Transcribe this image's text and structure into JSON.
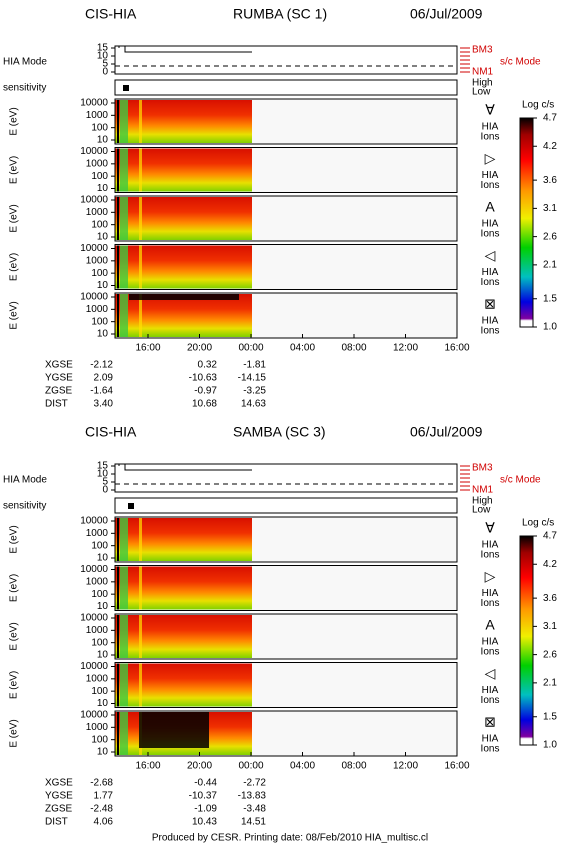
{
  "plots": [
    {
      "instrument": "CIS-HIA",
      "spacecraft": "RUMBA (SC 1)",
      "date": "06/Jul/2009",
      "orbit": [
        {
          "name": "XGSE",
          "values": [
            "-2.12",
            "0.32",
            "-1.81"
          ]
        },
        {
          "name": "YGSE",
          "values": [
            "2.09",
            "-10.63",
            "-14.15"
          ]
        },
        {
          "name": "ZGSE",
          "values": [
            "-1.64",
            "-0.97",
            "-3.25"
          ]
        },
        {
          "name": "DIST",
          "values": [
            "3.40",
            "10.68",
            "14.63"
          ]
        }
      ]
    },
    {
      "instrument": "CIS-HIA",
      "spacecraft": "SAMBA (SC 3)",
      "date": "06/Jul/2009",
      "orbit": [
        {
          "name": "XGSE",
          "values": [
            "-2.68",
            "-0.44",
            "-2.72"
          ]
        },
        {
          "name": "YGSE",
          "values": [
            "1.77",
            "-10.37",
            "-13.83"
          ]
        },
        {
          "name": "ZGSE",
          "values": [
            "-2.48",
            "-1.09",
            "-3.48"
          ]
        },
        {
          "name": "DIST",
          "values": [
            "4.06",
            "10.43",
            "14.51"
          ]
        }
      ]
    }
  ],
  "mode_label": "HIA Mode",
  "mode_ticks": [
    15,
    10,
    5,
    0
  ],
  "mode_right": [
    "BM3",
    "NM1"
  ],
  "sc_mode": "s/c Mode",
  "sensitivity_label": "sensitivity",
  "sensitivity_levels": [
    "High",
    "Low"
  ],
  "energy_label": "E (eV)",
  "energy_ticks": [
    10000,
    1000,
    100,
    10
  ],
  "species_symbols": [
    "∀",
    "▷",
    "A",
    "◁",
    "⊠"
  ],
  "species_label": [
    "HIA",
    "Ions"
  ],
  "colorbar_title": "Log c/s",
  "colorbar_ticks": [
    4.7,
    4.2,
    3.6,
    3.1,
    2.6,
    2.1,
    1.5,
    {
      "value": 1,
      "label": "1.0"
    }
  ],
  "time_ticks": [
    "16:00",
    "20:00",
    "00:00",
    "04:00",
    "08:00",
    "12:00",
    "16:00"
  ],
  "footer": "Produced by CESR.   Printing date: 08/Feb/2010   HIA_multisc.cl"
}
